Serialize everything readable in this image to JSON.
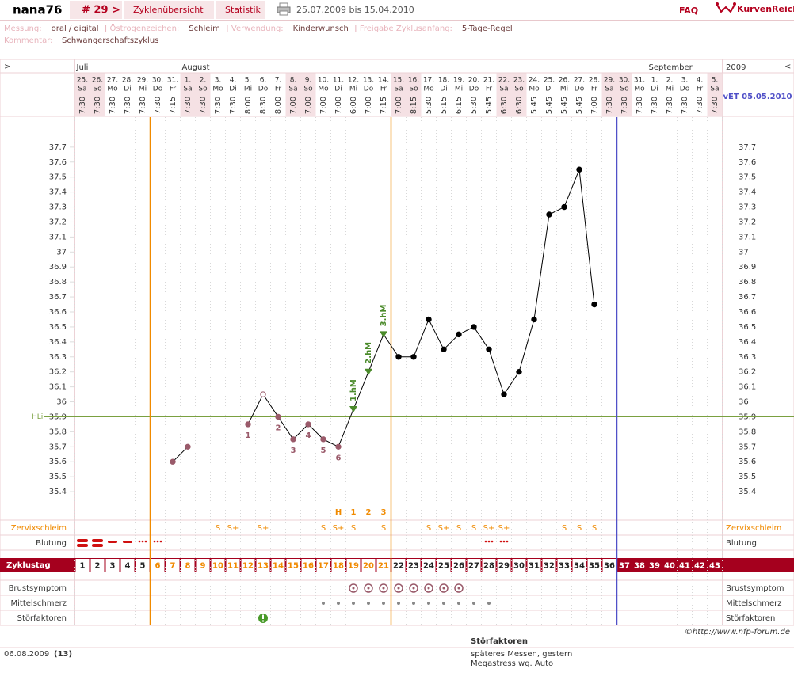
{
  "header": {
    "user": "nana76",
    "cycle": "# 29 >",
    "tabs": [
      "Zyklenübersicht",
      "Statistik"
    ],
    "date_range": "25.07.2009 bis 15.04.2010",
    "faq": "FAQ",
    "brand": "KurvenReich"
  },
  "info": {
    "fields": [
      {
        "label": "Messung:",
        "value": "oral / digital"
      },
      {
        "label": "Östrogenzeichen:",
        "value": "Schleim"
      },
      {
        "label": "Verwendung:",
        "value": "Kinderwunsch"
      },
      {
        "label": "Freigabe Zyklusanfang:",
        "value": "5-Tage-Regel"
      }
    ],
    "comment": {
      "label": "Kommentar:",
      "value": "Schwangerschaftszyklus"
    }
  },
  "calendar": {
    "left_arrow": ">",
    "right_arrow": "<",
    "months": [
      "Juli",
      "August",
      "September"
    ],
    "year": "2009",
    "due_date": "vET 05.05.2010",
    "days": [
      "25.",
      "26.",
      "27.",
      "28.",
      "29.",
      "30.",
      "31.",
      "1.",
      "2.",
      "3.",
      "4.",
      "5.",
      "6.",
      "7.",
      "8.",
      "9.",
      "10.",
      "11.",
      "12.",
      "13.",
      "14.",
      "15.",
      "16.",
      "17.",
      "18.",
      "19.",
      "20.",
      "21.",
      "22.",
      "23.",
      "24.",
      "25.",
      "26.",
      "27.",
      "28.",
      "29.",
      "30.",
      "31.",
      "1.",
      "2.",
      "3.",
      "4.",
      "5."
    ],
    "weekdays": [
      "Sa",
      "So",
      "Mo",
      "Di",
      "Mi",
      "Do",
      "Fr",
      "Sa",
      "So",
      "Mo",
      "Di",
      "Mi",
      "Do",
      "Fr",
      "Sa",
      "So",
      "Mo",
      "Di",
      "Mi",
      "Do",
      "Fr",
      "Sa",
      "So",
      "Mo",
      "Di",
      "Mi",
      "Do",
      "Fr",
      "Sa",
      "So",
      "Mo",
      "Di",
      "Mi",
      "Do",
      "Fr",
      "Sa",
      "So",
      "Mo",
      "Di",
      "Mi",
      "Do",
      "Fr",
      "Sa"
    ],
    "times": [
      "7:30",
      "7:30",
      "7:30",
      "7:30",
      "7:30",
      "7:30",
      "7:15",
      "7:30",
      "7:30",
      "7:30",
      "7:30",
      "8:00",
      "8:30",
      "8:00",
      "7:00",
      "7:00",
      "7:00",
      "7:00",
      "6:00",
      "7:00",
      "7:15",
      "7:00",
      "8:15",
      "5:30",
      "5:15",
      "6:15",
      "5:30",
      "5:45",
      "6:30",
      "6:30",
      "5:45",
      "5:45",
      "5:45",
      "5:45",
      "7:00",
      "7:30",
      "7:30",
      "7:30",
      "7:30",
      "7:30",
      "7:30",
      "7:30",
      "7:30"
    ]
  },
  "chart_data": {
    "type": "line",
    "categories": [
      1,
      2,
      3,
      4,
      5,
      6,
      7,
      8,
      9,
      10,
      11,
      12,
      13,
      14,
      15,
      16,
      17,
      18,
      19,
      20,
      21,
      22,
      23,
      24,
      25,
      26,
      27,
      28,
      29,
      30,
      31,
      32,
      33,
      34,
      35,
      36,
      37,
      38,
      39,
      40,
      41,
      42,
      43
    ],
    "values": [
      null,
      null,
      null,
      null,
      null,
      null,
      35.6,
      35.7,
      null,
      null,
      null,
      35.85,
      36.05,
      35.9,
      35.75,
      35.85,
      35.75,
      35.7,
      35.95,
      36.2,
      36.45,
      36.3,
      36.3,
      36.55,
      36.35,
      36.45,
      36.5,
      36.35,
      36.05,
      36.2,
      36.55,
      37.25,
      37.3,
      37.55,
      36.65,
      null,
      null,
      null,
      null,
      null,
      null,
      null,
      null
    ],
    "color": "#000000",
    "excluded_categories": [
      13
    ],
    "point_labels": [
      null,
      null,
      null,
      null,
      null,
      null,
      null,
      null,
      null,
      null,
      null,
      "1",
      null,
      "2",
      "3",
      "4",
      "5",
      "6",
      null,
      null,
      null,
      null,
      null,
      null,
      null,
      null,
      null,
      null,
      null,
      null,
      null,
      null,
      null,
      null,
      null,
      null,
      null,
      null,
      null,
      null,
      null,
      null,
      null
    ],
    "high_labels": [
      null,
      null,
      null,
      null,
      null,
      null,
      null,
      null,
      null,
      null,
      null,
      null,
      null,
      null,
      null,
      null,
      null,
      null,
      "1.hM",
      "2.hM",
      "3.hM",
      null,
      null,
      null,
      null,
      null,
      null,
      null,
      null,
      null,
      null,
      null,
      null,
      null,
      null,
      null,
      null,
      null,
      null,
      null,
      null,
      null,
      null
    ],
    "peak_row": [
      null,
      null,
      null,
      null,
      null,
      null,
      null,
      null,
      null,
      null,
      null,
      null,
      null,
      null,
      null,
      null,
      null,
      "H",
      "1",
      "2",
      "3",
      null,
      null,
      null,
      null,
      null,
      null,
      null,
      null,
      null,
      null,
      null,
      null,
      null,
      null,
      null,
      null,
      null,
      null,
      null,
      null,
      null,
      null
    ],
    "cervix": [
      null,
      null,
      null,
      null,
      null,
      null,
      null,
      null,
      null,
      "S",
      "S+",
      null,
      "S+",
      null,
      null,
      null,
      "S",
      "S+",
      "S",
      null,
      "S",
      null,
      null,
      "S",
      "S+",
      "S",
      "S",
      "S+",
      "S+",
      null,
      null,
      null,
      "S",
      "S",
      "S",
      null,
      null,
      null,
      null,
      null,
      null,
      null,
      null
    ],
    "cover_line": {
      "label": "HLi",
      "value": 35.9
    },
    "markers": [
      {
        "after": 5,
        "color": "#f08a00"
      },
      {
        "after": 21,
        "color": "#f08a00"
      },
      {
        "after": 36,
        "color": "#5050c8"
      }
    ],
    "ylim": [
      35.3,
      37.9
    ],
    "yticks": [
      35.4,
      35.5,
      35.6,
      35.7,
      35.8,
      35.9,
      36,
      36.1,
      36.2,
      36.3,
      36.4,
      36.5,
      36.6,
      36.7,
      36.8,
      36.9,
      37,
      37.1,
      37.2,
      37.3,
      37.4,
      37.5,
      37.6,
      37.7
    ]
  },
  "rows": {
    "cervix": "Zervixschleim",
    "bleeding": "Blutung",
    "cycle_day": "Zyklustag",
    "breast": "Brustsymptom",
    "midpain": "Mittelschmerz",
    "disturb": "Störfaktoren"
  },
  "footer": {
    "copyright": "©http://www.nfp-forum.de",
    "notes_title": "Störfaktoren",
    "date": "06.08.2009",
    "day": "(13)",
    "notes": [
      "späteres Messen, gestern",
      "Megastress wg. Auto"
    ]
  }
}
